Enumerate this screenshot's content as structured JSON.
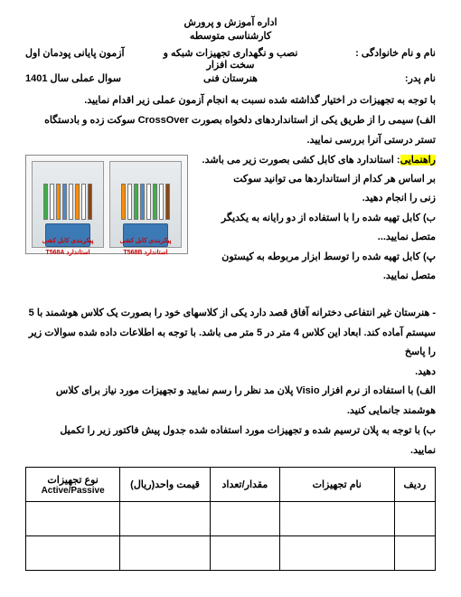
{
  "header": {
    "line1": "اداره آموزش و پرورش",
    "line2": "کارشناسی متوسطه"
  },
  "info": {
    "row1_right": "نام و نام خانوادگی :",
    "row1_center": "نصب و نگهداری تجهیزات شبکه و سخت افزار",
    "row1_left": "آزمون پایانی پودمان اول",
    "row2_right": "نام پدر:",
    "row2_center": "هنرستان فنی",
    "row2_left": "سوال عملی سال 1401"
  },
  "body": {
    "p1": "با توجه به تجهیزات در اختیار گذاشته شده نسبت به انجام آزمون عملی زیر اقدام نمایید.",
    "p2": "الف) سیمی را از طریق یکی از استانداردهای دلخواه بصورت CrossOver سوکت زده و بادستگاه",
    "p3": "تستر درستی آنرا بررسی نمایید.",
    "p4_hl": "راهنمایی",
    "p4_rest": ": استاندارد های کابل کشی بصورت زیر می باشد. بر اساس هر کدام از استانداردها می توانید سوکت",
    "p5": "زنی را انجام دهید.",
    "p6": "ب) کابل تهیه شده را با استفاده از دو رایانه به یکدیگر متصل نمایید...",
    "p7": "پ) کابل تهیه شده را توسط ابزار مربوطه به کیستون متصل نمایید.",
    "p8": "- هنرستان غیر انتفاعی دخترانه آفاق قصد دارد یکی از کلاسهای خود را بصورت یک کلاس هوشمند با 5",
    "p9": "سیستم آماده کند. ابعاد این کلاس 4 متر در 5 متر می باشد. با توجه به اطلاعات داده شده سوالات زیر را پاسخ",
    "p10": "دهید.",
    "p11": "الف) با استفاده از نرم افزار Visio پلان مد نظر را رسم نمایید و تجهیزات مورد نیاز برای کلاس",
    "p12": "هوشمند جانمایی کنید.",
    "p13": "ب) با توجه به پلان ترسیم شده و تجهیزات مورد استفاده شده جدول پیش فاکتور زیر را تکمیل",
    "p14": "نمایید."
  },
  "connector": {
    "label_a": "پیکربندی کابل کشی استاندارد T568A",
    "label_b": "پیکربندی کابل کشی استاندارد T568B",
    "colors_a": [
      "#3cb043",
      "#ffffff",
      "#ff8c00",
      "#4f88c6",
      "#ffffff",
      "#ff8c00",
      "#ffffff",
      "#8b4513"
    ],
    "colors_b": [
      "#ff8c00",
      "#ffffff",
      "#3cb043",
      "#4f88c6",
      "#ffffff",
      "#3cb043",
      "#ffffff",
      "#8b4513"
    ]
  },
  "table": {
    "headers": {
      "c1": "ردیف",
      "c2": "نام تجهیزات",
      "c3": "مقدار/تعداد",
      "c4": "قیمت واحد(ریال)",
      "c5_fa": "نوع تجهیزات",
      "c5_en": "Active/Passive"
    }
  }
}
